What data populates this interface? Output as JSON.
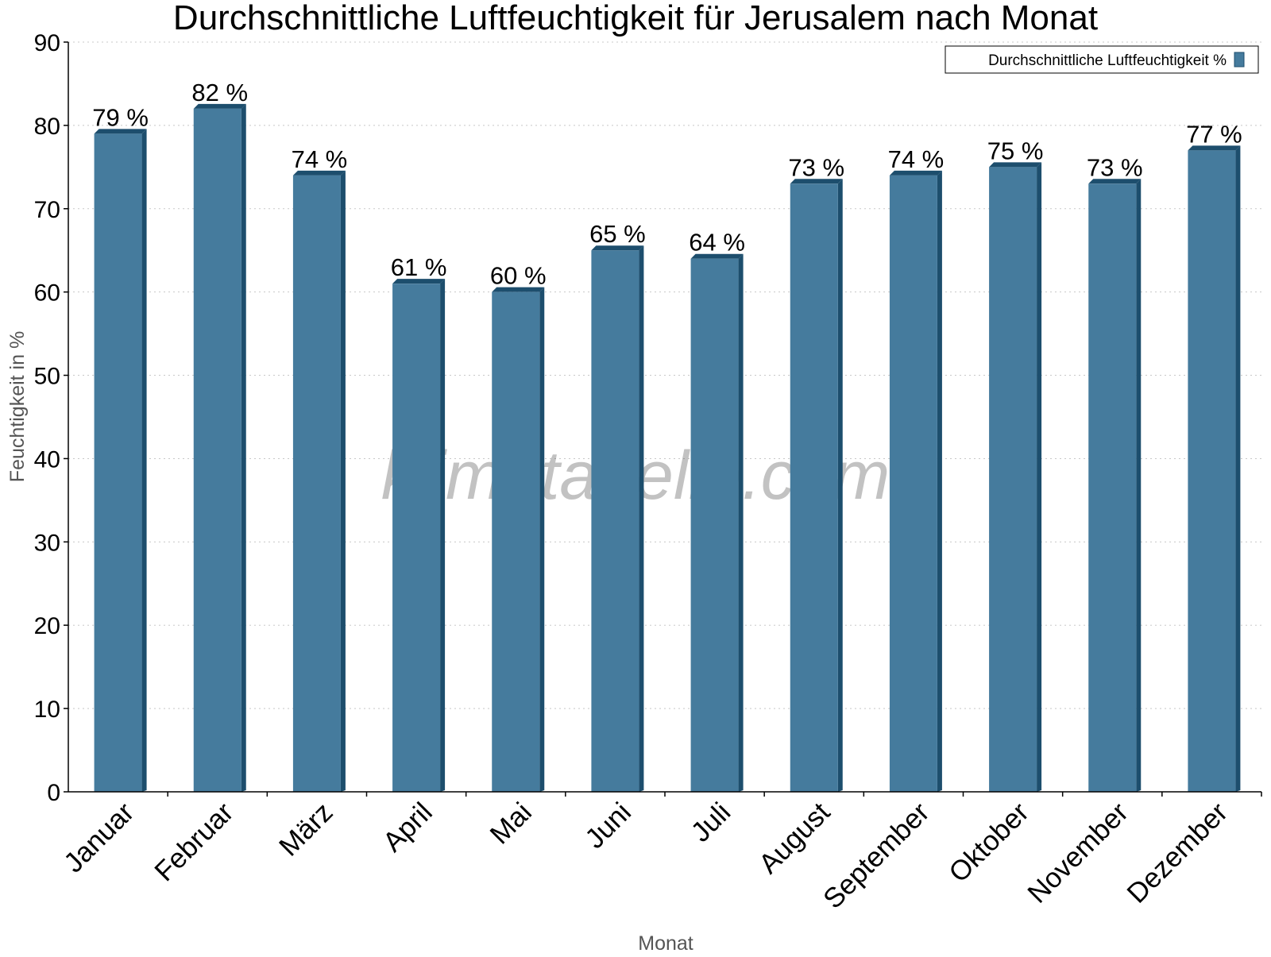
{
  "chart_data": {
    "type": "bar",
    "title": "Durchschnittliche Luftfeuchtigkeit für Jerusalem nach Monat",
    "xlabel": "Monat",
    "ylabel": "Feuchtigkeit in %",
    "ylim": [
      0,
      90
    ],
    "yticks": [
      "0",
      "10",
      "20",
      "30",
      "40",
      "50",
      "60",
      "70",
      "80",
      "90"
    ],
    "categories": [
      "Januar",
      "Februar",
      "März",
      "April",
      "Mai",
      "Juni",
      "Juli",
      "August",
      "September",
      "Oktober",
      "November",
      "Dezember"
    ],
    "series": [
      {
        "name": "Durchschnittliche Luftfeuchtigkeit %",
        "values": [
          79,
          82,
          74,
          61,
          60,
          65,
          64,
          73,
          74,
          75,
          73,
          77
        ],
        "labels": [
          "79 %",
          "82 %",
          "74 %",
          "61 %",
          "60 %",
          "65 %",
          "64 %",
          "73 %",
          "74 %",
          "75 %",
          "73 %",
          "77 %"
        ]
      }
    ],
    "grid": true,
    "legend_position": "top-right",
    "watermark": "klimatabelle.com",
    "colors": {
      "bar_front": "#457b9d",
      "bar_side": "#1d4e6d",
      "bar_top": "#1d4e6d",
      "grid": "#c8c8c8",
      "axis": "#000000"
    }
  }
}
